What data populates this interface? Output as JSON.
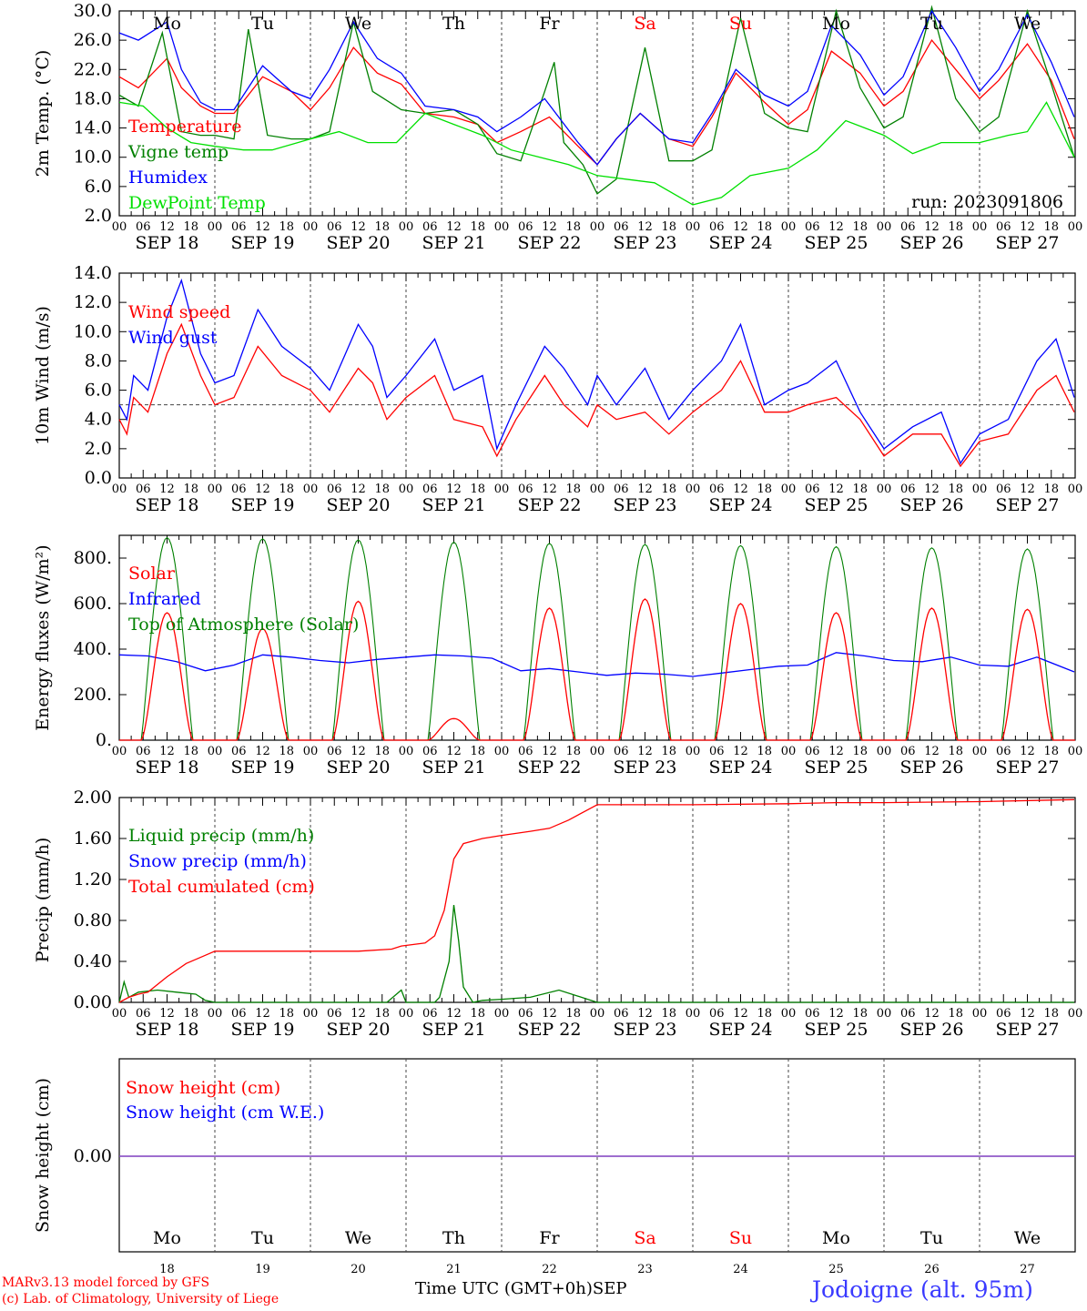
{
  "run_label": "run: 2023091806",
  "footer": {
    "credit_1": "MARv3.13 model forced by GFS",
    "credit_2": "(c) Lab. of Climatology, University of Liege",
    "time_label": "Time UTC (GMT+0h)",
    "month": "SEP",
    "station": "Jodoigne (alt. 95m)"
  },
  "dates": [
    "SEP 18",
    "SEP 19",
    "SEP 20",
    "SEP 21",
    "SEP 22",
    "SEP 23",
    "SEP 24",
    "SEP 25",
    "SEP 26",
    "SEP 27"
  ],
  "weekdays": [
    "Mo",
    "Tu",
    "We",
    "Th",
    "Fr",
    "Sa",
    "Su",
    "Mo",
    "Tu",
    "We"
  ],
  "day_numbers": [
    "18",
    "19",
    "20",
    "21",
    "22",
    "23",
    "24",
    "25",
    "26",
    "27"
  ],
  "hour_ticks": [
    "00",
    "06",
    "12",
    "18"
  ],
  "colors": {
    "red": "#ff0000",
    "green": "#008000",
    "blue": "#0000ff",
    "light_green": "#00e000",
    "purple": "#7f3fbf",
    "weekend": "#ff0000"
  },
  "chart_data": [
    {
      "type": "line",
      "ylabel": "2m Temp. (°C)",
      "ylim": [
        2.0,
        30.0
      ],
      "y_ticks": [
        "2.0",
        "6.0",
        "10.0",
        "14.0",
        "18.0",
        "22.0",
        "26.0",
        "30.0"
      ],
      "x_unit": "days since SEP 18 00 UTC",
      "legend": [
        "Temperature",
        "Vigne temp",
        "Humidex",
        "DewPoint Temp"
      ],
      "series": [
        {
          "name": "Temperature",
          "color": "red",
          "x": [
            0,
            0.2,
            0.5,
            0.65,
            0.85,
            1.0,
            1.2,
            1.5,
            1.8,
            2.0,
            2.2,
            2.45,
            2.7,
            2.95,
            3.2,
            3.5,
            3.75,
            3.95,
            4.2,
            4.5,
            4.8,
            5.0,
            5.2,
            5.45,
            5.75,
            6.0,
            6.2,
            6.45,
            6.75,
            7.0,
            7.2,
            7.45,
            7.75,
            8.0,
            8.2,
            8.5,
            8.75,
            9.0,
            9.2,
            9.5,
            9.75,
            9.99
          ],
          "values": [
            21.0,
            19.5,
            23.5,
            19.5,
            17.0,
            16.0,
            16.0,
            21.0,
            19.0,
            16.5,
            19.5,
            25.0,
            21.5,
            20.0,
            16.0,
            15.5,
            14.5,
            12.0,
            13.5,
            15.5,
            11.5,
            9.0,
            12.5,
            16.0,
            12.5,
            11.5,
            15.5,
            21.5,
            17.5,
            14.5,
            16.5,
            24.5,
            21.5,
            17.0,
            19.0,
            26.0,
            22.0,
            18.0,
            20.5,
            25.5,
            20.5,
            12.5
          ]
        },
        {
          "name": "Vigne temp",
          "color": "green",
          "x": [
            0,
            0.2,
            0.45,
            0.65,
            0.85,
            1.0,
            1.2,
            1.35,
            1.55,
            1.8,
            2.0,
            2.2,
            2.45,
            2.65,
            2.95,
            3.2,
            3.5,
            3.75,
            3.95,
            4.2,
            4.45,
            4.55,
            4.65,
            4.85,
            5.0,
            5.2,
            5.5,
            5.75,
            6.0,
            6.2,
            6.5,
            6.75,
            7.0,
            7.2,
            7.5,
            7.75,
            8.0,
            8.2,
            8.5,
            8.75,
            9.0,
            9.2,
            9.5,
            9.75,
            9.99
          ],
          "values": [
            18.5,
            17.0,
            27.0,
            13.5,
            13.0,
            13.0,
            12.5,
            27.5,
            13.0,
            12.5,
            12.5,
            13.5,
            28.5,
            19.0,
            16.5,
            16.0,
            16.5,
            14.5,
            10.5,
            9.5,
            19.0,
            23.0,
            12.0,
            9.0,
            5.0,
            7.0,
            25.0,
            9.5,
            9.5,
            11.0,
            29.0,
            16.0,
            14.0,
            13.5,
            30.0,
            19.5,
            14.0,
            15.5,
            30.5,
            18.0,
            13.5,
            15.5,
            30.0,
            20.0,
            10.0
          ]
        },
        {
          "name": "Humidex",
          "color": "blue",
          "x": [
            0,
            0.2,
            0.5,
            0.65,
            0.85,
            1.0,
            1.2,
            1.5,
            1.8,
            2.0,
            2.2,
            2.45,
            2.7,
            2.95,
            3.2,
            3.5,
            3.75,
            3.95,
            4.2,
            4.45,
            4.8,
            5.0,
            5.2,
            5.45,
            5.75,
            6.0,
            6.2,
            6.45,
            6.75,
            7.0,
            7.2,
            7.45,
            7.75,
            8.0,
            8.2,
            8.5,
            8.75,
            9.0,
            9.2,
            9.5,
            9.75,
            9.99
          ],
          "values": [
            27.0,
            26.0,
            28.5,
            22.0,
            17.5,
            16.5,
            16.5,
            22.5,
            19.0,
            18.0,
            22.0,
            28.5,
            23.5,
            21.5,
            17.0,
            16.5,
            15.5,
            13.5,
            15.5,
            18.0,
            12.0,
            9.0,
            12.5,
            16.0,
            12.5,
            12.0,
            16.0,
            22.0,
            18.5,
            17.0,
            19.0,
            28.0,
            24.0,
            18.5,
            21.0,
            30.0,
            25.0,
            19.0,
            22.0,
            29.5,
            23.0,
            15.5
          ]
        },
        {
          "name": "DewPoint Temp",
          "color": "light_green",
          "x": [
            0,
            0.25,
            0.5,
            0.75,
            1.0,
            1.3,
            1.6,
            2.0,
            2.3,
            2.6,
            2.9,
            3.2,
            3.5,
            3.8,
            4.1,
            4.4,
            4.7,
            5.0,
            5.3,
            5.6,
            6.0,
            6.3,
            6.6,
            7.0,
            7.3,
            7.6,
            8.0,
            8.3,
            8.6,
            9.0,
            9.3,
            9.5,
            9.7,
            9.99
          ],
          "values": [
            17.5,
            17.0,
            14.0,
            12.0,
            11.5,
            11.0,
            11.0,
            12.5,
            13.5,
            12.0,
            12.0,
            16.0,
            14.5,
            13.0,
            11.0,
            10.0,
            9.0,
            7.5,
            7.0,
            6.5,
            3.5,
            4.5,
            7.5,
            8.5,
            11.0,
            15.0,
            13.0,
            10.5,
            12.0,
            12.0,
            13.0,
            13.5,
            17.5,
            10.0
          ]
        }
      ]
    },
    {
      "type": "line",
      "ylabel": "10m Wind (m/s)",
      "ylim": [
        0.0,
        14.0
      ],
      "y_ticks": [
        "0.0",
        "2.0",
        "4.0",
        "6.0",
        "8.0",
        "10.0",
        "12.0",
        "14.0"
      ],
      "reference_line": 5.0,
      "legend": [
        "Wind speed",
        "Wind gust"
      ],
      "series": [
        {
          "name": "Wind speed",
          "color": "red",
          "x": [
            0,
            0.08,
            0.15,
            0.3,
            0.5,
            0.65,
            0.85,
            1.0,
            1.2,
            1.45,
            1.7,
            2.0,
            2.2,
            2.5,
            2.65,
            2.8,
            3.0,
            3.3,
            3.5,
            3.8,
            3.95,
            4.15,
            4.45,
            4.65,
            4.9,
            5.0,
            5.2,
            5.5,
            5.75,
            6.0,
            6.3,
            6.5,
            6.75,
            7.0,
            7.2,
            7.5,
            7.75,
            8.0,
            8.3,
            8.6,
            8.8,
            9.0,
            9.3,
            9.6,
            9.8,
            9.99
          ],
          "values": [
            4.0,
            3.0,
            5.5,
            4.5,
            8.5,
            10.5,
            7.0,
            5.0,
            5.5,
            9.0,
            7.0,
            6.0,
            4.5,
            7.5,
            6.5,
            4.0,
            5.5,
            7.0,
            4.0,
            3.5,
            1.5,
            4.0,
            7.0,
            5.0,
            3.5,
            5.0,
            4.0,
            4.5,
            3.0,
            4.5,
            6.0,
            8.0,
            4.5,
            4.5,
            5.0,
            5.5,
            4.0,
            1.5,
            3.0,
            3.0,
            0.8,
            2.5,
            3.0,
            6.0,
            7.0,
            4.5
          ]
        },
        {
          "name": "Wind gust",
          "color": "blue",
          "x": [
            0,
            0.08,
            0.15,
            0.3,
            0.5,
            0.65,
            0.85,
            1.0,
            1.2,
            1.45,
            1.7,
            2.0,
            2.2,
            2.5,
            2.65,
            2.8,
            3.0,
            3.3,
            3.5,
            3.8,
            3.95,
            4.15,
            4.45,
            4.65,
            4.9,
            5.0,
            5.2,
            5.5,
            5.75,
            6.0,
            6.3,
            6.5,
            6.75,
            7.0,
            7.2,
            7.5,
            7.75,
            8.0,
            8.3,
            8.6,
            8.8,
            9.0,
            9.3,
            9.6,
            9.8,
            9.99
          ],
          "values": [
            5.0,
            4.0,
            7.0,
            6.0,
            11.0,
            13.5,
            8.5,
            6.5,
            7.0,
            11.5,
            9.0,
            7.5,
            6.0,
            10.5,
            9.0,
            5.5,
            7.0,
            9.5,
            6.0,
            7.0,
            2.0,
            5.0,
            9.0,
            7.5,
            5.0,
            7.0,
            5.0,
            7.5,
            4.0,
            6.0,
            8.0,
            10.5,
            5.0,
            6.0,
            6.5,
            8.0,
            4.5,
            2.0,
            3.5,
            4.5,
            1.0,
            3.0,
            4.0,
            8.0,
            9.5,
            5.5
          ]
        }
      ]
    },
    {
      "type": "line",
      "ylabel": "Energy fluxes (W/m²)",
      "ylim": [
        0,
        900
      ],
      "y_ticks": [
        "0.",
        "200.",
        "400.",
        "600.",
        "800."
      ],
      "legend": [
        "Solar",
        "Infrared",
        "Top of Atmosphere (Solar)"
      ],
      "day_profiles": {
        "toa_peak": [
          890,
          885,
          880,
          870,
          865,
          860,
          855,
          850,
          845,
          840
        ],
        "solar_peak": [
          560,
          490,
          610,
          95,
          580,
          620,
          600,
          560,
          580,
          575
        ]
      },
      "series": [
        {
          "name": "Infrared",
          "color": "blue",
          "x": [
            0,
            0.3,
            0.6,
            0.9,
            1.2,
            1.5,
            1.8,
            2.1,
            2.4,
            2.7,
            3.0,
            3.3,
            3.6,
            3.9,
            4.2,
            4.5,
            4.8,
            5.1,
            5.4,
            5.7,
            6.0,
            6.3,
            6.6,
            6.9,
            7.2,
            7.5,
            7.8,
            8.1,
            8.4,
            8.7,
            9.0,
            9.3,
            9.6,
            9.99
          ],
          "values": [
            375,
            370,
            345,
            305,
            330,
            375,
            365,
            350,
            340,
            355,
            365,
            375,
            370,
            360,
            305,
            315,
            300,
            285,
            295,
            290,
            280,
            295,
            310,
            325,
            330,
            385,
            370,
            350,
            345,
            365,
            330,
            325,
            365,
            300
          ]
        }
      ]
    },
    {
      "type": "line",
      "ylabel": "Precip (mm/h)",
      "ylim": [
        0.0,
        2.0
      ],
      "y_ticks": [
        "0.00",
        "0.40",
        "0.80",
        "1.20",
        "1.60",
        "2.00"
      ],
      "legend": [
        "Liquid precip (mm/h)",
        "Snow precip (mm/h)",
        "Total cumulated (cm)"
      ],
      "series": [
        {
          "name": "Liquid precip (mm/h)",
          "color": "green",
          "x": [
            0,
            0.05,
            0.1,
            0.2,
            0.4,
            0.6,
            0.8,
            0.9,
            1.0,
            2.8,
            2.95,
            3.0,
            3.3,
            3.35,
            3.45,
            3.5,
            3.55,
            3.6,
            3.7,
            3.8,
            4.0,
            4.3,
            4.6,
            4.9,
            5.0,
            9.99
          ],
          "values": [
            0,
            0.2,
            0.05,
            0.1,
            0.12,
            0.1,
            0.08,
            0.02,
            0,
            0,
            0.12,
            0,
            0,
            0.05,
            0.4,
            0.95,
            0.6,
            0.15,
            0,
            0.02,
            0.03,
            0.05,
            0.12,
            0.03,
            0,
            0
          ]
        },
        {
          "name": "Total cumulated (cm)",
          "color": "red",
          "x": [
            0,
            0.1,
            0.2,
            0.3,
            0.5,
            0.7,
            0.9,
            1.0,
            1.5,
            2.0,
            2.5,
            2.85,
            2.95,
            3.2,
            3.3,
            3.4,
            3.5,
            3.6,
            3.8,
            4.0,
            4.3,
            4.5,
            4.7,
            5.0,
            6.0,
            7.0,
            7.5,
            8.0,
            9.0,
            9.99
          ],
          "values": [
            0,
            0.05,
            0.08,
            0.1,
            0.25,
            0.38,
            0.46,
            0.5,
            0.5,
            0.5,
            0.5,
            0.52,
            0.55,
            0.58,
            0.65,
            0.9,
            1.4,
            1.55,
            1.6,
            1.63,
            1.67,
            1.7,
            1.78,
            1.93,
            1.93,
            1.94,
            1.95,
            1.95,
            1.96,
            1.98
          ]
        }
      ]
    },
    {
      "type": "line",
      "ylabel": "Snow height (cm)",
      "y_ticks": [
        "0.00"
      ],
      "legend": [
        "Snow height (cm)",
        "Snow height (cm W.E.)"
      ],
      "series": [
        {
          "name": "Snow height (cm)",
          "color": "red",
          "x": [
            0,
            9.99
          ],
          "values": [
            0,
            0
          ]
        },
        {
          "name": "Snow height (cm W.E.)",
          "color": "blue",
          "x": [
            0,
            9.99
          ],
          "values": [
            0,
            0
          ]
        }
      ]
    }
  ]
}
